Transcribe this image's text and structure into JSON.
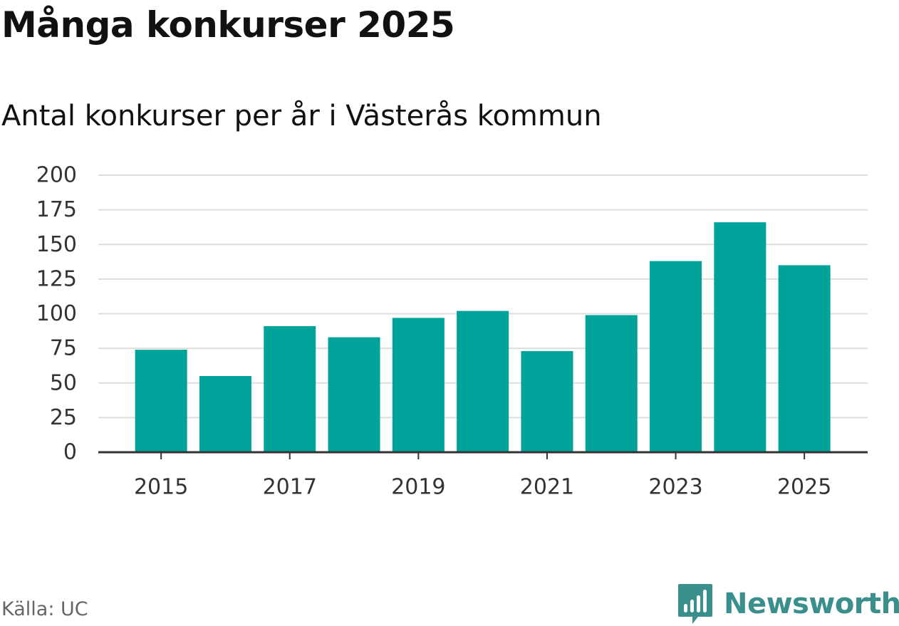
{
  "header": {
    "title": "Många konkurser 2025",
    "subtitle": "Antal konkurser per år i Västerås kommun"
  },
  "footer": {
    "source": "Källa: UC",
    "brand": "Newsworthy"
  },
  "colors": {
    "bar": "#00a39a",
    "grid": "#dddddd",
    "axis": "#333333",
    "brand": "#3a8f8c"
  },
  "chart_data": {
    "type": "bar",
    "title": "Många konkurser 2025",
    "subtitle": "Antal konkurser per år i Västerås kommun",
    "xlabel": "",
    "ylabel": "",
    "categories": [
      "2015",
      "2016",
      "2017",
      "2018",
      "2019",
      "2020",
      "2021",
      "2022",
      "2023",
      "2024",
      "2025"
    ],
    "values": [
      74,
      55,
      91,
      83,
      97,
      102,
      73,
      99,
      138,
      166,
      135
    ],
    "x_tick_labels": [
      "2015",
      "2017",
      "2019",
      "2021",
      "2023",
      "2025"
    ],
    "y_ticks": [
      0,
      25,
      50,
      75,
      100,
      125,
      150,
      175,
      200
    ],
    "ylim": [
      0,
      200
    ],
    "grid": true,
    "source": "Källa: UC"
  }
}
